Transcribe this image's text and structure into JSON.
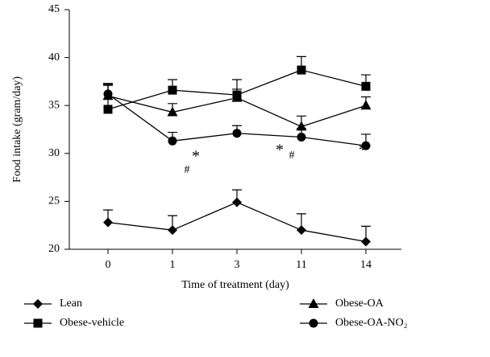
{
  "chart_data": {
    "type": "line",
    "y_label": "Food intake (gram/day)",
    "x_label": "Time of treatment (day)",
    "categories": [
      "0",
      "1",
      "3",
      "11",
      "14"
    ],
    "ylim": [
      20,
      45
    ],
    "yticks": [
      20,
      25,
      30,
      35,
      40,
      45
    ],
    "series": [
      {
        "name": "Lean",
        "color": "#000000",
        "marker": "diamond",
        "values": [
          22.8,
          22.0,
          24.9,
          22.0,
          20.8
        ],
        "errors": [
          1.3,
          1.5,
          1.3,
          1.7,
          1.6
        ]
      },
      {
        "name": "Obese-vehicle",
        "color": "#000000",
        "marker": "square",
        "values": [
          34.6,
          36.6,
          36.1,
          38.7,
          37.0
        ],
        "errors": [
          2.6,
          1.1,
          1.6,
          1.4,
          1.2
        ]
      },
      {
        "name": "Obese-OA",
        "color": "#000000",
        "marker": "triangle",
        "values": [
          36.0,
          34.3,
          35.8,
          32.8,
          35.0
        ],
        "errors": [
          1.1,
          0.9,
          0.9,
          1.1,
          0.9
        ]
      },
      {
        "name": "Obese-OA-NO₂",
        "color": "#000000",
        "marker": "circle",
        "values": [
          36.2,
          31.3,
          32.1,
          31.7,
          30.8
        ],
        "errors": [
          1.1,
          0.9,
          0.8,
          0.9,
          1.2
        ]
      }
    ],
    "annotations": [
      "*",
      "#",
      "*",
      "#",
      "*"
    ]
  }
}
